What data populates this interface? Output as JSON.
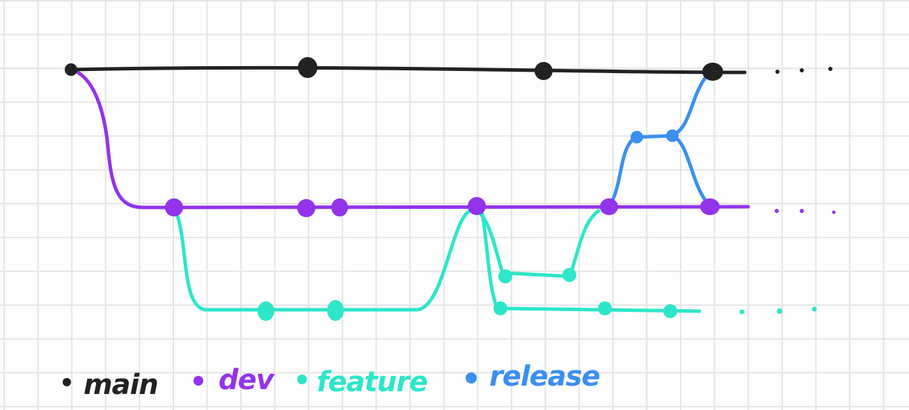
{
  "colors": {
    "main": "#222222",
    "dev": "#9333ea",
    "feature": "#2ee6c8",
    "release": "#3b8ff0",
    "grid": "#e4e4e4"
  },
  "legend": {
    "main": "main",
    "dev": "dev",
    "feature": "feature",
    "release": "release"
  }
}
